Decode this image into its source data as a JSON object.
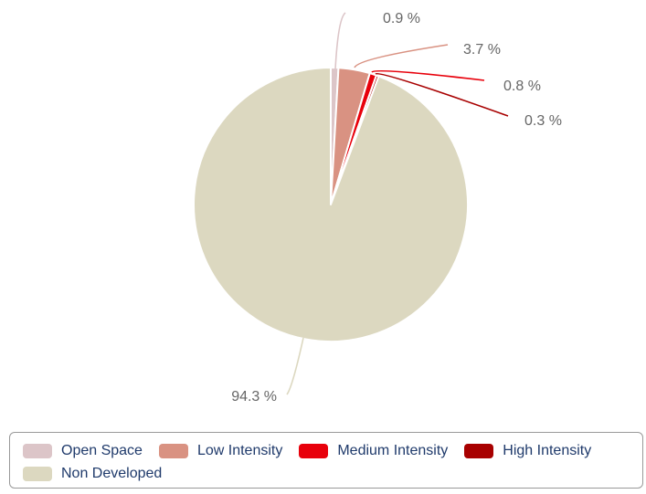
{
  "chart_data": {
    "type": "pie",
    "title": "",
    "start_angle_deg": 0,
    "direction": "clockwise",
    "slices": [
      {
        "label": "Open Space",
        "value": 0.9,
        "display": "0.9 %",
        "color": "#dcc5c8"
      },
      {
        "label": "Low Intensity",
        "value": 3.7,
        "display": "3.7 %",
        "color": "#d99282"
      },
      {
        "label": "Medium Intensity",
        "value": 0.8,
        "display": "0.8 %",
        "color": "#e8000b"
      },
      {
        "label": "High Intensity",
        "value": 0.3,
        "display": "0.3 %",
        "color": "#a80000"
      },
      {
        "label": "Non Developed",
        "value": 94.3,
        "display": "94.3 %",
        "color": "#dcd8c0"
      }
    ],
    "legend": {
      "position": "bottom",
      "items": [
        "Open Space",
        "Low Intensity",
        "Medium Intensity",
        "High Intensity",
        "Non Developed"
      ]
    }
  }
}
